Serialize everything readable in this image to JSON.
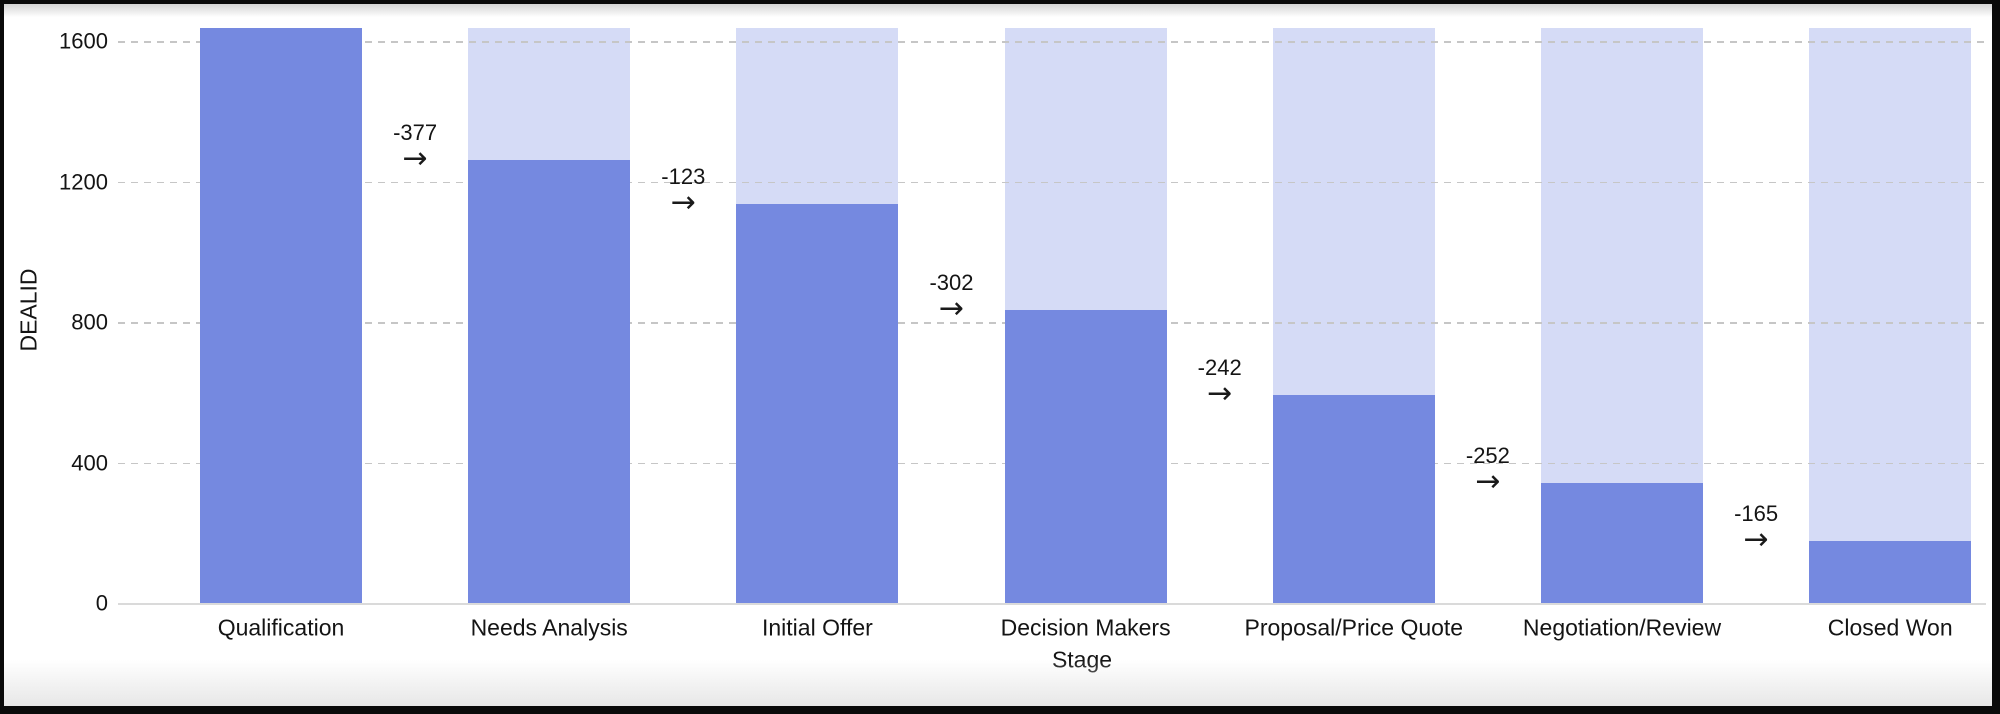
{
  "chart": {
    "arrow_glyph": "→",
    "colors": {
      "bar": "#7589E0",
      "bar_background": "#D5DBF6",
      "gridline": "#C6C6C6",
      "axis_line": "#DADADA",
      "text": "#141414",
      "canvas": "#FFFFFF",
      "frame": "#000000"
    }
  },
  "chart_data": {
    "type": "bar",
    "subtype": "funnel-with-stage-deltas",
    "title": "",
    "xlabel": "Stage",
    "ylabel": "DEALID",
    "categories": [
      "Qualification",
      "Needs Analysis",
      "Initial Offer",
      "Decision Makers",
      "Proposal/Price Quote",
      "Negotiation/Review",
      "Closed Won"
    ],
    "values": [
      1640,
      1263,
      1140,
      838,
      596,
      344,
      179
    ],
    "deltas": [
      -377,
      -123,
      -302,
      -242,
      -252,
      -165
    ],
    "background_bar_value": 1640,
    "yticks": [
      0,
      400,
      800,
      1200,
      1600
    ],
    "ylim": [
      0,
      1640
    ],
    "grid": "horizontal-dashed",
    "legend": "none"
  }
}
